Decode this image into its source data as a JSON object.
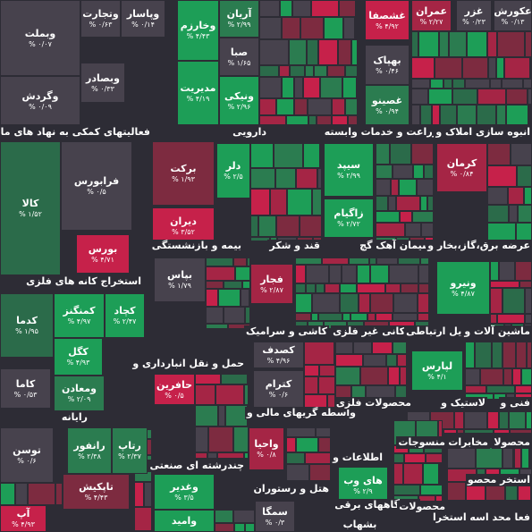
{
  "sectors": [
    "فعالیتهای کمکی به نهاد های مالی واس",
    "دارویی",
    "زراعت و خدمات وابسته",
    "انبوه سازی املاک و",
    "استخراج کانه های فلزی",
    "بیمه و بازنشستگی",
    "قند و شکر",
    "سیمان آهک گچ",
    "عرضه برق،گاز،بخار و",
    "کاشی و سرامیک",
    "کانی غیر فلزی",
    "وسایل ارتباطی",
    "ماشین آلات و",
    "حمل و نقل انبارداری و",
    "رایانه",
    "واسطه گریهای مالی و",
    "محصولات فلزی",
    "لاستیک و",
    "فنی و",
    "چندرشته ای صنعتی",
    "اطلاعات و",
    "هتل و رستوران",
    "دستگاههای برقی",
    "محصولات",
    "منسوجات",
    "مخابرات",
    "محصولا",
    "استخر محصو",
    "فعا محد اسه استخرا"
  ],
  "tiles": [
    {
      "name": "وبملت",
      "change": "۰/۰۷ %",
      "color": "#47424d"
    },
    {
      "name": "وگردش",
      "change": "۰/۰۹ %",
      "color": "#47424d"
    },
    {
      "name": "وتجارت",
      "change": "۰/۶۳ %",
      "color": "#47424d"
    },
    {
      "name": "وپاسار",
      "change": "۰/۱۴ %",
      "color": "#47424d"
    },
    {
      "name": "وبصادر",
      "change": "۰/۳۳ %",
      "color": "#47424d"
    },
    {
      "name": "وخارزم",
      "change": "۴/۴۳ %",
      "color": "#1d9e57"
    },
    {
      "name": "مدیریت",
      "change": "۴/۱۹ %",
      "color": "#1d9e57"
    },
    {
      "name": "آریان",
      "change": "۲/۹۹ %",
      "color": "#2b7c50"
    },
    {
      "name": "صبا",
      "change": "۱/۶۵ %",
      "color": "#47424d"
    },
    {
      "name": "ونیکی",
      "change": "۲/۹۶ %",
      "color": "#1d9e57"
    },
    {
      "name": "غشصفا",
      "change": "۴/۹۲ %",
      "color": "#c6214a"
    },
    {
      "name": "بهپاک",
      "change": "۰/۴۶ %",
      "color": "#47424d"
    },
    {
      "name": "غصینو",
      "change": "۰/۹۴ %",
      "color": "#2b7c50"
    },
    {
      "name": "عمران",
      "change": "۲/۲۷ %",
      "color": "#a52545"
    },
    {
      "name": "غزر",
      "change": "۰/۲۳ %",
      "color": "#47424d"
    },
    {
      "name": "عکورش",
      "change": "۰/۱۳ %",
      "color": "#47424d"
    },
    {
      "name": "کالا",
      "change": "۱/۵۲ %",
      "color": "#2b6b4a"
    },
    {
      "name": "فرابورس",
      "change": "۰/۵ %",
      "color": "#47424d"
    },
    {
      "name": "بورس",
      "change": "۴/۷۱ %",
      "color": "#c6214a"
    },
    {
      "name": "برکت",
      "change": "۱/۹۳ %",
      "color": "#7d2b40"
    },
    {
      "name": "دیران",
      "change": "۳/۵۲ %",
      "color": "#c6214a"
    },
    {
      "name": "دلر",
      "change": "۲/۵ %",
      "color": "#1d9e57"
    },
    {
      "name": "سیپد",
      "change": "۲/۹۹ %",
      "color": "#1d9e57"
    },
    {
      "name": "زاگیام",
      "change": "۲/۷۲ %",
      "color": "#1d9e57"
    },
    {
      "name": "کرمان",
      "change": "۰/۸۴ %",
      "color": "#a52545"
    },
    {
      "name": "بپاس",
      "change": "۱/۷۹ %",
      "color": "#47424d"
    },
    {
      "name": "فجار",
      "change": "۲/۸۷ %",
      "color": "#a52545"
    },
    {
      "name": "ونیرو",
      "change": "۴/۸۷ %",
      "color": "#1d9e57"
    },
    {
      "name": "کدما",
      "change": "۱/۹۵ %",
      "color": "#2b6b4a"
    },
    {
      "name": "کمنگنز",
      "change": "۴/۹۷ %",
      "color": "#1d9e57"
    },
    {
      "name": "کچاد",
      "change": "۲/۴۷ %",
      "color": "#1d9e57"
    },
    {
      "name": "کگل",
      "change": "۴/۹۳ %",
      "color": "#1d9e57"
    },
    {
      "name": "ومعادن",
      "change": "۲/۰۹ %",
      "color": "#2b7c50"
    },
    {
      "name": "کاما",
      "change": "۰/۵۳ %",
      "color": "#47424d"
    },
    {
      "name": "کصدف",
      "change": "۴/۹۶ %",
      "color": "#47424d"
    },
    {
      "name": "کترام",
      "change": "۰/۶ %",
      "color": "#47424d"
    },
    {
      "name": "لپارس",
      "change": "۴/۱ %",
      "color": "#1d9e57"
    },
    {
      "name": "حافرین",
      "change": "۰/۵ %",
      "color": "#c6214a"
    },
    {
      "name": "توسن",
      "change": "۰/۶ %",
      "color": "#47424d"
    },
    {
      "name": "رانفور",
      "change": "۲/۳۸ %",
      "color": "#2b7c50"
    },
    {
      "name": "رتاپ",
      "change": "۲/۳۷ %",
      "color": "#2b7c50"
    },
    {
      "name": "تاپکیش",
      "change": "۴/۴۳ %",
      "color": "#7d2b40"
    },
    {
      "name": "آپ",
      "change": "۴/۹۳ %",
      "color": "#c6214a"
    },
    {
      "name": "وغدیر",
      "change": "۳/۵ %",
      "color": "#1d9e57"
    },
    {
      "name": "وامید",
      "change": "",
      "color": "#1d9e57"
    },
    {
      "name": "واحیا",
      "change": "۰/۸ %",
      "color": "#a52545"
    },
    {
      "name": "های وب",
      "change": "۲/۹ %",
      "color": "#1d9e57"
    },
    {
      "name": "سمگا",
      "change": "۰/۳ %",
      "color": "#47424d"
    },
    {
      "name": "بشهاب",
      "change": "",
      "color": "#2d2c35"
    }
  ]
}
